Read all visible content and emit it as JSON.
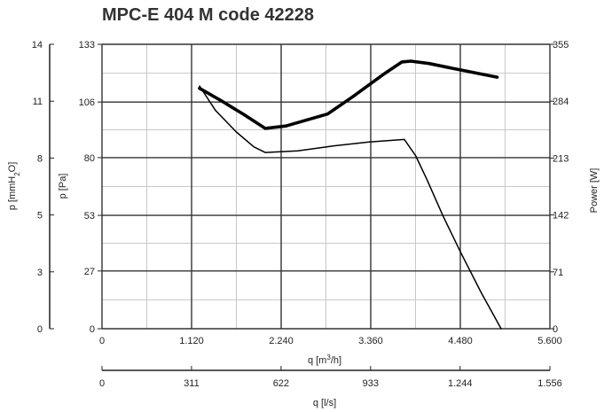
{
  "chart_data": {
    "type": "line",
    "title": "MPC-E 404 M code 42228",
    "axes": {
      "x_primary": {
        "label": "q [m³/h]",
        "label_base": "q [m",
        "label_unit": "³/h]",
        "range": [
          0,
          5600
        ],
        "ticks": [
          "0",
          "1.120",
          "2.240",
          "3.360",
          "4.480",
          "5.600"
        ],
        "tick_values": [
          0,
          1120,
          2240,
          3360,
          4480,
          5600
        ]
      },
      "x_secondary": {
        "label": "q [l/s]",
        "range": [
          0,
          1556
        ],
        "ticks": [
          "0",
          "311",
          "622",
          "933",
          "1.244",
          "1.556"
        ],
        "tick_values": [
          0,
          311,
          622,
          933,
          1244,
          1556
        ]
      },
      "y_pressure_pa": {
        "label": "p [Pa]",
        "range": [
          0,
          133
        ],
        "ticks": [
          "0",
          "27",
          "53",
          "80",
          "106",
          "133"
        ],
        "tick_values": [
          0,
          27,
          53,
          80,
          106,
          133
        ]
      },
      "y_pressure_mmh2o": {
        "label": "p [mmH₂O]",
        "label_base": "p [mmH",
        "label_sub": "2",
        "label_end": "O]",
        "range": [
          0,
          14
        ],
        "ticks": [
          "0",
          "3",
          "5",
          "8",
          "11",
          "14"
        ],
        "tick_values": [
          0,
          2.8,
          5.6,
          8.4,
          11.2,
          14
        ]
      },
      "y_power": {
        "label": "Power [W]",
        "range": [
          0,
          355
        ],
        "ticks": [
          "0",
          "71",
          "142",
          "213",
          "284",
          "355"
        ],
        "tick_values": [
          0,
          71,
          142,
          213,
          284,
          355
        ]
      }
    },
    "grid": true,
    "series": [
      {
        "axis": "y_pressure_pa",
        "stroke": "thin",
        "x": [
          1220,
          1420,
          1680,
          1900,
          2040,
          2450,
          2900,
          3340,
          3780,
          3920,
          4060,
          4260,
          4480,
          4740,
          4990
        ],
        "y": [
          113.5,
          102,
          92,
          85,
          82.4,
          83.2,
          85.5,
          87.3,
          88.5,
          81,
          70,
          53,
          36,
          17,
          0
        ]
      },
      {
        "axis": "y_power",
        "stroke": "thick",
        "x": [
          1220,
          1500,
          1780,
          2040,
          2300,
          2820,
          3140,
          3540,
          3750,
          3860,
          4090,
          4480,
          4940
        ],
        "y": [
          300,
          284,
          267,
          250,
          253,
          268,
          290,
          319,
          333,
          334,
          331,
          323,
          314
        ]
      }
    ]
  }
}
